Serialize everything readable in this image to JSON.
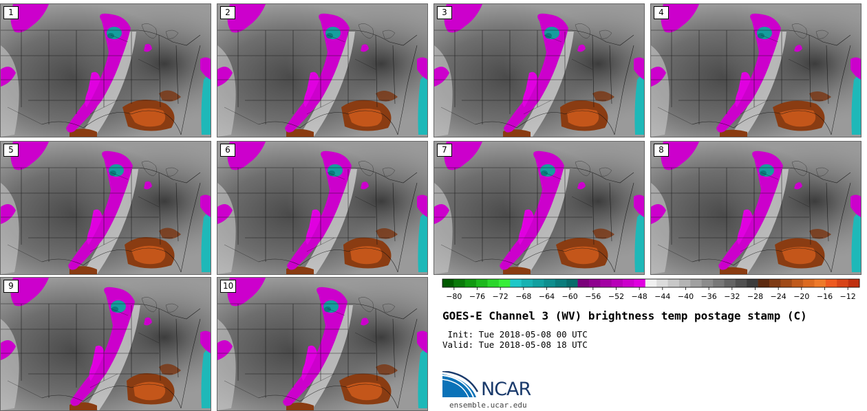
{
  "panels": [
    {
      "label": "1"
    },
    {
      "label": "2"
    },
    {
      "label": "3"
    },
    {
      "label": "4"
    },
    {
      "label": "5"
    },
    {
      "label": "6"
    },
    {
      "label": "7"
    },
    {
      "label": "8"
    },
    {
      "label": "9"
    },
    {
      "label": "10"
    }
  ],
  "colorbar": {
    "ticks": [
      "−80",
      "−76",
      "−72",
      "−68",
      "−64",
      "−60",
      "−56",
      "−52",
      "−48",
      "−44",
      "−40",
      "−36",
      "−32",
      "−28",
      "−24",
      "−20",
      "−16",
      "−12"
    ],
    "min": -82,
    "max": -10,
    "colors": [
      "#005a00",
      "#0a7a0a",
      "#119911",
      "#1cb81c",
      "#2ad62a",
      "#38ee38",
      "#1ec8c8",
      "#17b2b2",
      "#12a0a0",
      "#0e8e8e",
      "#0a7c7c",
      "#076b6b",
      "#7a007a",
      "#8e008e",
      "#a300a3",
      "#b800b8",
      "#cc00cc",
      "#e000e0",
      "#f0f0f0",
      "#dcdcdc",
      "#c8c8c8",
      "#b4b4b4",
      "#a0a0a0",
      "#8c8c8c",
      "#787878",
      "#646464",
      "#505050",
      "#3c3c3c",
      "#5c2a10",
      "#7e3a14",
      "#a04a18",
      "#c05a1c",
      "#dc6a20",
      "#ee7a2a",
      "#ee5a20",
      "#d84418",
      "#c03010"
    ]
  },
  "title": "GOES-E Channel 3 (WV) brightness temp postage stamp (C)",
  "init": " Init: Tue 2018-05-08 00 UTC",
  "valid": "Valid: Tue 2018-05-08 18 UTC",
  "logo_text": "NCAR",
  "url": "ensemble.ucar.edu"
}
